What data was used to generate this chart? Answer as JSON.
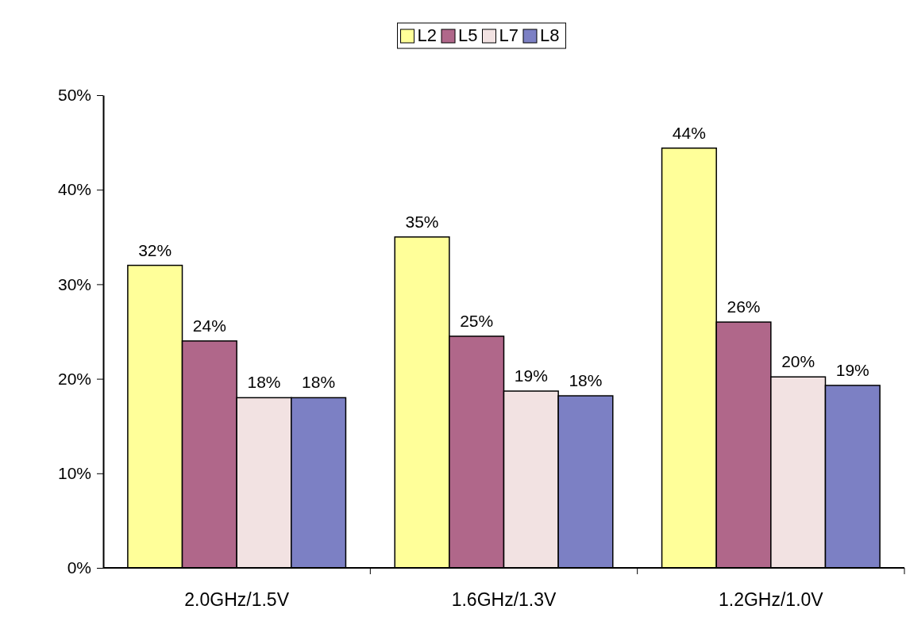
{
  "chart_data": {
    "type": "bar",
    "categories": [
      "2.0GHz/1.5V",
      "1.6GHz/1.3V",
      "1.2GHz/1.0V"
    ],
    "series": [
      {
        "name": "L2",
        "color": "#ffff99",
        "values": [
          32,
          35,
          44.4
        ],
        "value_labels": [
          "32%",
          "35%",
          "44%"
        ]
      },
      {
        "name": "L5",
        "color": "#b0678a",
        "values": [
          24,
          24.5,
          26
        ],
        "value_labels": [
          "24%",
          "25%",
          "26%"
        ]
      },
      {
        "name": "L7",
        "color": "#f2e2e2",
        "values": [
          18,
          18.7,
          20.2
        ],
        "value_labels": [
          "18%",
          "19%",
          "20%"
        ]
      },
      {
        "name": "L8",
        "color": "#7c80c4",
        "values": [
          18,
          18.2,
          19.3
        ],
        "value_labels": [
          "18%",
          "18%",
          "19%"
        ]
      }
    ],
    "ylim": [
      0,
      50
    ],
    "yticks": [
      {
        "value": 0,
        "label": "0%"
      },
      {
        "value": 10,
        "label": "10%"
      },
      {
        "value": 20,
        "label": "20%"
      },
      {
        "value": 30,
        "label": "30%"
      },
      {
        "value": 40,
        "label": "40%"
      },
      {
        "value": 50,
        "label": "50%"
      }
    ],
    "legend": "top",
    "grid": false
  }
}
